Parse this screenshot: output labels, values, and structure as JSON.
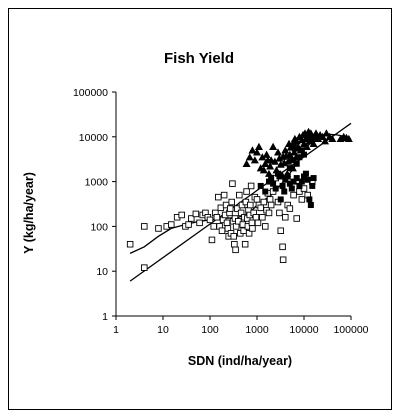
{
  "chart_data": {
    "type": "scatter",
    "title": "Fish  Yield",
    "xlabel": "SDN  (ind/ha/year)",
    "ylabel": "Y (kg/ha/year)",
    "xscale": "log",
    "yscale": "log",
    "xlim": [
      1,
      100000
    ],
    "ylim": [
      1,
      100000
    ],
    "x_ticks": [
      "1",
      "10",
      "100",
      "1000",
      "10000",
      "100000"
    ],
    "y_ticks": [
      "1",
      "10",
      "100",
      "1000",
      "10000",
      "100000"
    ],
    "grid": false,
    "legend": "none",
    "series": [
      {
        "marker": "open-square",
        "points": [
          [
            2,
            40
          ],
          [
            4,
            100
          ],
          [
            4,
            12
          ],
          [
            8,
            90
          ],
          [
            12,
            100
          ],
          [
            15,
            110
          ],
          [
            20,
            160
          ],
          [
            25,
            180
          ],
          [
            30,
            100
          ],
          [
            35,
            110
          ],
          [
            40,
            150
          ],
          [
            50,
            190
          ],
          [
            60,
            120
          ],
          [
            70,
            180
          ],
          [
            80,
            200
          ],
          [
            90,
            160
          ],
          [
            100,
            140
          ],
          [
            110,
            50
          ],
          [
            120,
            100
          ],
          [
            130,
            200
          ],
          [
            140,
            160
          ],
          [
            150,
            450
          ],
          [
            160,
            100
          ],
          [
            170,
            260
          ],
          [
            180,
            80
          ],
          [
            190,
            140
          ],
          [
            200,
            500
          ],
          [
            210,
            180
          ],
          [
            220,
            300
          ],
          [
            230,
            120
          ],
          [
            240,
            90
          ],
          [
            250,
            60
          ],
          [
            260,
            200
          ],
          [
            270,
            250
          ],
          [
            280,
            70
          ],
          [
            290,
            350
          ],
          [
            300,
            900
          ],
          [
            310,
            130
          ],
          [
            320,
            60
          ],
          [
            330,
            40
          ],
          [
            340,
            150
          ],
          [
            350,
            30
          ],
          [
            360,
            100
          ],
          [
            380,
            250
          ],
          [
            400,
            130
          ],
          [
            420,
            500
          ],
          [
            440,
            70
          ],
          [
            460,
            200
          ],
          [
            480,
            300
          ],
          [
            500,
            110
          ],
          [
            520,
            80
          ],
          [
            540,
            160
          ],
          [
            560,
            40
          ],
          [
            580,
            350
          ],
          [
            600,
            600
          ],
          [
            620,
            150
          ],
          [
            640,
            100
          ],
          [
            660,
            230
          ],
          [
            680,
            70
          ],
          [
            700,
            180
          ],
          [
            720,
            300
          ],
          [
            750,
            800
          ],
          [
            780,
            120
          ],
          [
            800,
            90
          ],
          [
            850,
            200
          ],
          [
            900,
            450
          ],
          [
            950,
            160
          ],
          [
            1000,
            400
          ],
          [
            1050,
            120
          ],
          [
            1100,
            300
          ],
          [
            1200,
            260
          ],
          [
            1300,
            160
          ],
          [
            1400,
            350
          ],
          [
            1500,
            100
          ],
          [
            1600,
            230
          ],
          [
            1700,
            550
          ],
          [
            1800,
            200
          ],
          [
            1900,
            400
          ],
          [
            2000,
            300
          ],
          [
            2200,
            600
          ],
          [
            2500,
            1200
          ],
          [
            2800,
            350
          ],
          [
            3000,
            200
          ],
          [
            3200,
            80
          ],
          [
            3500,
            35
          ],
          [
            3600,
            18
          ],
          [
            4000,
            160
          ],
          [
            4500,
            300
          ],
          [
            5000,
            250
          ],
          [
            6000,
            500
          ],
          [
            7000,
            150
          ],
          [
            8000,
            600
          ],
          [
            9000,
            400
          ],
          [
            10000,
            700
          ],
          [
            12000,
            500
          ],
          [
            15000,
            1000
          ]
        ]
      },
      {
        "marker": "filled-square",
        "points": [
          [
            1200,
            800
          ],
          [
            1500,
            600
          ],
          [
            1800,
            1000
          ],
          [
            2000,
            1200
          ],
          [
            2200,
            900
          ],
          [
            2500,
            700
          ],
          [
            2800,
            1500
          ],
          [
            3000,
            1300
          ],
          [
            3200,
            400
          ],
          [
            3500,
            800
          ],
          [
            3800,
            600
          ],
          [
            4000,
            1100
          ],
          [
            4500,
            1300
          ],
          [
            5000,
            900
          ],
          [
            5500,
            700
          ],
          [
            6000,
            1000
          ],
          [
            7000,
            1200
          ],
          [
            8000,
            800
          ],
          [
            9000,
            1000
          ],
          [
            10000,
            1300
          ],
          [
            11000,
            1500
          ],
          [
            12000,
            1100
          ],
          [
            13000,
            400
          ],
          [
            14000,
            300
          ],
          [
            15000,
            800
          ],
          [
            16000,
            1200
          ],
          [
            5000,
            2000
          ],
          [
            6000,
            3000
          ],
          [
            7000,
            2500
          ],
          [
            8000,
            3500
          ],
          [
            9000,
            5000
          ],
          [
            10000,
            4000
          ]
        ]
      },
      {
        "marker": "filled-triangle",
        "points": [
          [
            600,
            2500
          ],
          [
            700,
            3500
          ],
          [
            800,
            5000
          ],
          [
            900,
            3000
          ],
          [
            1000,
            4500
          ],
          [
            1100,
            6000
          ],
          [
            1200,
            2000
          ],
          [
            1300,
            3500
          ],
          [
            1400,
            1800
          ],
          [
            1500,
            2500
          ],
          [
            1600,
            4000
          ],
          [
            1700,
            3000
          ],
          [
            1800,
            1500
          ],
          [
            1900,
            2200
          ],
          [
            2000,
            3000
          ],
          [
            2200,
            6000
          ],
          [
            2400,
            2800
          ],
          [
            2600,
            1800
          ],
          [
            2800,
            4500
          ],
          [
            3000,
            3300
          ],
          [
            3200,
            2400
          ],
          [
            3400,
            1400
          ],
          [
            3600,
            3600
          ],
          [
            3800,
            2600
          ],
          [
            4000,
            5000
          ],
          [
            4200,
            3800
          ],
          [
            4400,
            1500
          ],
          [
            4600,
            2800
          ],
          [
            4800,
            7000
          ],
          [
            5000,
            4000
          ],
          [
            5200,
            5800
          ],
          [
            5400,
            3200
          ],
          [
            5600,
            6500
          ],
          [
            5800,
            2000
          ],
          [
            6000,
            7500
          ],
          [
            6200,
            4500
          ],
          [
            6400,
            9000
          ],
          [
            6600,
            5500
          ],
          [
            6800,
            3500
          ],
          [
            7000,
            8000
          ],
          [
            7500,
            6000
          ],
          [
            8000,
            10000
          ],
          [
            8500,
            5000
          ],
          [
            9000,
            8500
          ],
          [
            9500,
            11000
          ],
          [
            10000,
            7000
          ],
          [
            10500,
            12000
          ],
          [
            11000,
            9000
          ],
          [
            11500,
            6000
          ],
          [
            12000,
            11000
          ],
          [
            12500,
            13000
          ],
          [
            13000,
            8000
          ],
          [
            13500,
            10000
          ],
          [
            14000,
            12000
          ],
          [
            15000,
            9000
          ],
          [
            16000,
            7000
          ],
          [
            17000,
            10000
          ],
          [
            18000,
            12000
          ],
          [
            20000,
            9000
          ],
          [
            22000,
            11000
          ],
          [
            25000,
            10000
          ],
          [
            28000,
            8000
          ],
          [
            30000,
            12000
          ],
          [
            35000,
            10000
          ],
          [
            40000,
            9000
          ],
          [
            60000,
            9000
          ],
          [
            70000,
            10000
          ],
          [
            80000,
            9500
          ],
          [
            90000,
            9000
          ]
        ]
      }
    ],
    "lines": [
      {
        "style": "curve",
        "points": [
          [
            2,
            25
          ],
          [
            4,
            35
          ],
          [
            8,
            60
          ],
          [
            15,
            90
          ],
          [
            30,
            110
          ],
          [
            60,
            130
          ],
          [
            100,
            140
          ],
          [
            200,
            150
          ],
          [
            400,
            160
          ],
          [
            700,
            200
          ],
          [
            1000,
            300
          ],
          [
            2000,
            500
          ],
          [
            4000,
            1100
          ],
          [
            7000,
            2500
          ],
          [
            10000,
            5000
          ],
          [
            15000,
            8000
          ],
          [
            20000,
            10000
          ],
          [
            30000,
            11500
          ],
          [
            50000,
            11000
          ],
          [
            80000,
            10000
          ],
          [
            130000,
            9000
          ]
        ]
      },
      {
        "style": "regression",
        "points": [
          [
            2,
            6
          ],
          [
            100000,
            20000
          ]
        ]
      }
    ]
  }
}
